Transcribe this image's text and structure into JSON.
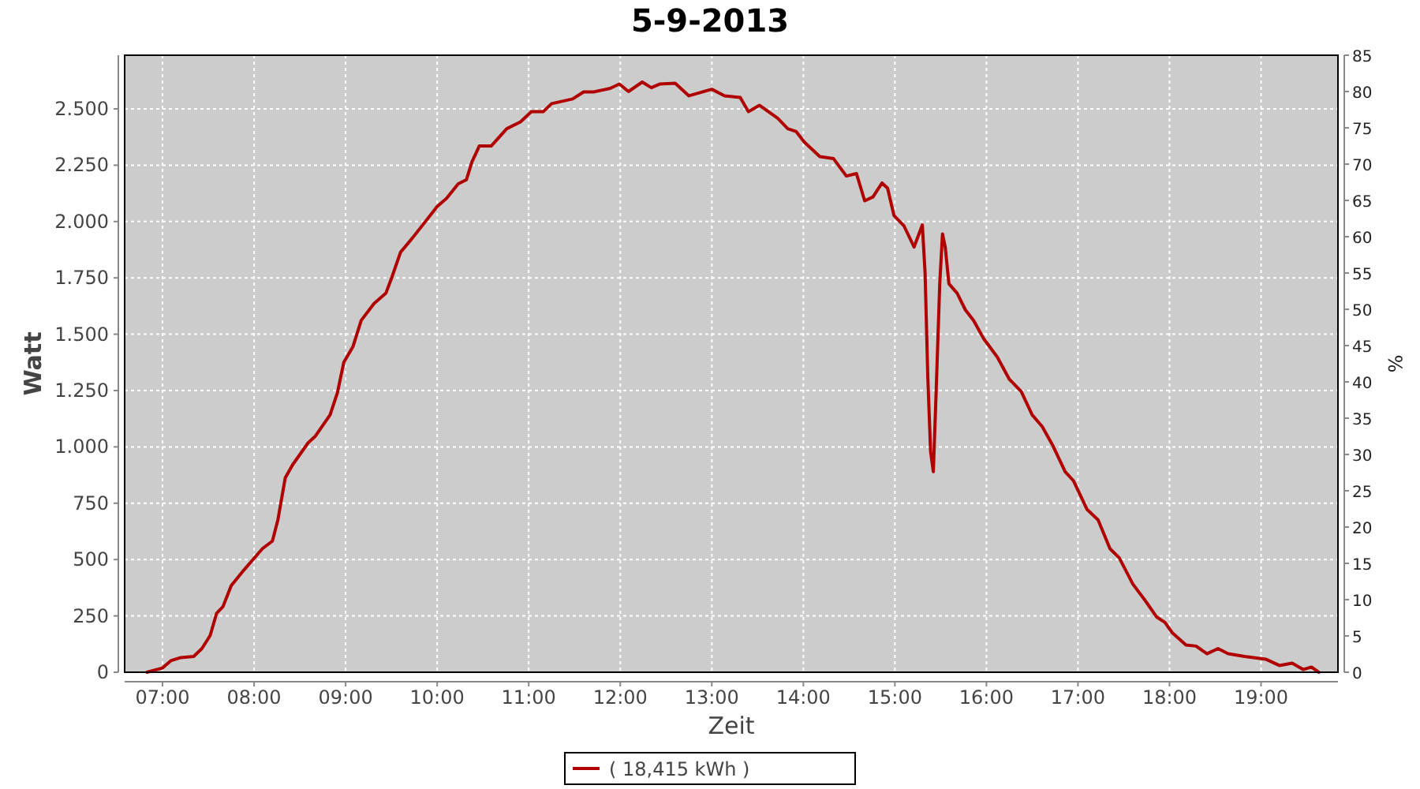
{
  "chart_data": {
    "type": "line",
    "title": "5-9-2013",
    "xlabel": "Zeit",
    "ylabel": "Watt",
    "y2label": "%",
    "xlim": [
      6.586,
      19.84
    ],
    "ylim": [
      0,
      2738
    ],
    "y2lim": [
      0,
      85
    ],
    "xticks": [
      {
        "value": 7,
        "label": "07:00"
      },
      {
        "value": 8,
        "label": "08:00"
      },
      {
        "value": 9,
        "label": "09:00"
      },
      {
        "value": 10,
        "label": "10:00"
      },
      {
        "value": 11,
        "label": "11:00"
      },
      {
        "value": 12,
        "label": "12:00"
      },
      {
        "value": 13,
        "label": "13:00"
      },
      {
        "value": 14,
        "label": "14:00"
      },
      {
        "value": 15,
        "label": "15:00"
      },
      {
        "value": 16,
        "label": "16:00"
      },
      {
        "value": 17,
        "label": "17:00"
      },
      {
        "value": 18,
        "label": "18:00"
      },
      {
        "value": 19,
        "label": "19:00"
      }
    ],
    "yticks": [
      0,
      250,
      500,
      750,
      {
        "value": 1000,
        "label": "1.000"
      },
      {
        "value": 1250,
        "label": "1.250"
      },
      {
        "value": 1500,
        "label": "1.500"
      },
      {
        "value": 1750,
        "label": "1.750"
      },
      {
        "value": 2000,
        "label": "2.000"
      },
      {
        "value": 2250,
        "label": "2.250"
      },
      {
        "value": 2500,
        "label": "2.500"
      }
    ],
    "y2ticks": [
      0,
      5,
      10,
      15,
      20,
      25,
      30,
      35,
      40,
      45,
      50,
      55,
      60,
      65,
      70,
      75,
      80,
      85
    ],
    "grid": true,
    "legend": "bottom",
    "marker": "none",
    "line_style": "solid",
    "series": [
      {
        "name": "( 18,415 kWh )",
        "color": "#b00000",
        "x": [
          6.83,
          7.0,
          7.09,
          7.2,
          7.34,
          7.43,
          7.52,
          7.59,
          7.66,
          7.75,
          7.89,
          8.09,
          8.2,
          8.26,
          8.34,
          8.42,
          8.59,
          8.67,
          8.83,
          8.91,
          8.98,
          9.08,
          9.17,
          9.31,
          9.44,
          9.5,
          9.6,
          9.73,
          10.0,
          10.1,
          10.23,
          10.32,
          10.38,
          10.46,
          10.59,
          10.76,
          10.91,
          11.03,
          11.16,
          11.25,
          11.48,
          11.6,
          11.71,
          11.89,
          11.99,
          12.09,
          12.24,
          12.34,
          12.43,
          12.6,
          12.75,
          13.0,
          13.14,
          13.31,
          13.4,
          13.52,
          13.72,
          13.83,
          13.92,
          14.01,
          14.18,
          14.33,
          14.47,
          14.58,
          14.67,
          14.76,
          14.86,
          14.92,
          14.99,
          15.1,
          15.21,
          15.3,
          15.33,
          15.36,
          15.39,
          15.42,
          15.45,
          15.49,
          15.52,
          15.55,
          15.59,
          15.68,
          15.77,
          15.86,
          15.97,
          16.12,
          16.25,
          16.38,
          16.5,
          16.61,
          16.73,
          16.86,
          16.95,
          17.1,
          17.22,
          17.35,
          17.45,
          17.6,
          17.74,
          17.86,
          17.95,
          18.03,
          18.18,
          18.29,
          18.41,
          18.53,
          18.64,
          18.82,
          19.05,
          19.2,
          19.34,
          19.46,
          19.55,
          19.63
        ],
        "values": [
          0,
          19,
          51,
          65,
          70,
          105,
          163,
          261,
          291,
          384,
          454,
          548,
          582,
          676,
          862,
          920,
          1018,
          1048,
          1142,
          1240,
          1375,
          1445,
          1561,
          1636,
          1682,
          1747,
          1864,
          1927,
          2067,
          2102,
          2167,
          2186,
          2265,
          2335,
          2335,
          2412,
          2442,
          2488,
          2488,
          2523,
          2544,
          2575,
          2575,
          2591,
          2610,
          2577,
          2619,
          2594,
          2610,
          2614,
          2558,
          2587,
          2558,
          2551,
          2488,
          2516,
          2458,
          2412,
          2400,
          2353,
          2288,
          2279,
          2202,
          2213,
          2092,
          2109,
          2171,
          2148,
          2027,
          1980,
          1887,
          1985,
          1771,
          1305,
          979,
          890,
          1235,
          1724,
          1945,
          1887,
          1724,
          1682,
          1608,
          1561,
          1480,
          1398,
          1300,
          1246,
          1142,
          1090,
          1002,
          890,
          850,
          722,
          676,
          548,
          508,
          391,
          315,
          245,
          221,
          175,
          121,
          116,
          82,
          105,
          82,
          70,
          58,
          30,
          40,
          12,
          23,
          0
        ]
      }
    ]
  }
}
